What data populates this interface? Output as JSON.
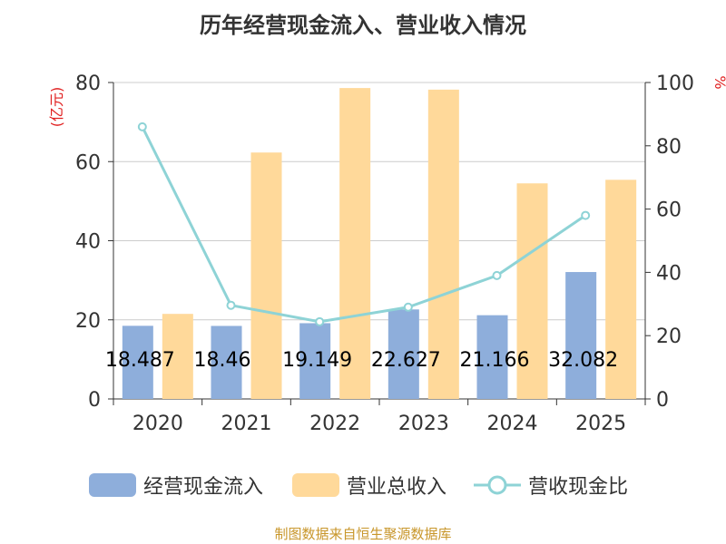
{
  "title": "历年经营现金流入、营业收入情况",
  "source": "制图数据来自恒生聚源数据库",
  "chart_data": {
    "type": "bar",
    "categories": [
      "2020",
      "2021",
      "2022",
      "2023",
      "2024",
      "2025"
    ],
    "series": [
      {
        "name": "经营现金流入",
        "kind": "bar",
        "axis": "left",
        "color": "#8eaedb",
        "values": [
          18.487,
          18.46,
          19.149,
          22.627,
          21.166,
          32.082
        ],
        "labels": [
          "18.487",
          "18.46",
          "19.149",
          "22.627",
          "21.166",
          "32.082"
        ]
      },
      {
        "name": "营业总收入",
        "kind": "bar",
        "axis": "left",
        "color": "#ffd99a",
        "values": [
          21.5,
          62.3,
          78.6,
          78.2,
          54.5,
          55.4
        ]
      },
      {
        "name": "营收现金比",
        "kind": "line",
        "axis": "right",
        "color": "#8ed3d6",
        "values": [
          86,
          29.6,
          24.4,
          29,
          39,
          58
        ]
      }
    ],
    "ylabel": "(亿元)",
    "ylim": [
      0,
      80
    ],
    "yticks": [
      "0",
      "20",
      "40",
      "60",
      "80"
    ],
    "y2label": "%",
    "y2lim": [
      0,
      100
    ],
    "y2ticks": [
      "0",
      "20",
      "40",
      "60",
      "80",
      "100"
    ],
    "grid": true,
    "legend_position": "bottom"
  }
}
